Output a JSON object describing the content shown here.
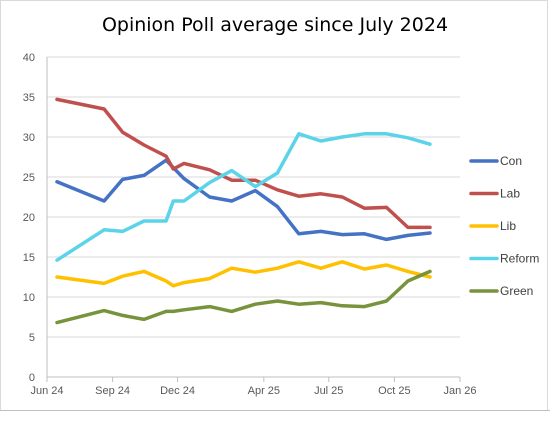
{
  "chart_data": {
    "type": "line",
    "title": "Opinion Poll average since July 2024",
    "xlabel": "",
    "ylabel": "",
    "ylim": [
      0,
      40
    ],
    "yticks": [
      0,
      5,
      10,
      15,
      20,
      25,
      30,
      35,
      40
    ],
    "xlim": [
      "2024-06-01",
      "2026-01-01"
    ],
    "xticks": [
      {
        "date": "2024-06-01",
        "label": "Jun 24"
      },
      {
        "date": "2024-09-01",
        "label": "Sep 24"
      },
      {
        "date": "2024-12-01",
        "label": "Dec 24"
      },
      {
        "date": "2025-04-01",
        "label": "Apr 25"
      },
      {
        "date": "2025-07-01",
        "label": "Jul 25"
      },
      {
        "date": "2025-10-01",
        "label": "Oct 25"
      },
      {
        "date": "2026-01-01",
        "label": "Jan 26"
      }
    ],
    "grid": "horizontal",
    "legend_position": "right",
    "series": [
      {
        "name": "Con",
        "color": "#4472c4",
        "points": [
          [
            "2024-06-15",
            24.4
          ],
          [
            "2024-08-20",
            22.0
          ],
          [
            "2024-09-15",
            24.7
          ],
          [
            "2024-10-15",
            25.2
          ],
          [
            "2024-11-15",
            27.1
          ],
          [
            "2024-12-10",
            24.8
          ],
          [
            "2025-01-15",
            22.5
          ],
          [
            "2025-02-15",
            22.0
          ],
          [
            "2025-03-20",
            23.3
          ],
          [
            "2025-04-20",
            21.3
          ],
          [
            "2025-05-20",
            17.9
          ],
          [
            "2025-06-20",
            18.2
          ],
          [
            "2025-07-20",
            17.8
          ],
          [
            "2025-08-20",
            17.9
          ],
          [
            "2025-09-20",
            17.2
          ],
          [
            "2025-10-20",
            17.7
          ],
          [
            "2025-11-20",
            18.0
          ]
        ]
      },
      {
        "name": "Lab",
        "color": "#c0504d",
        "points": [
          [
            "2024-06-15",
            34.7
          ],
          [
            "2024-08-20",
            33.5
          ],
          [
            "2024-09-15",
            30.6
          ],
          [
            "2024-10-15",
            29.0
          ],
          [
            "2024-11-15",
            27.6
          ],
          [
            "2024-11-25",
            26.0
          ],
          [
            "2024-12-10",
            26.7
          ],
          [
            "2025-01-15",
            25.9
          ],
          [
            "2025-02-15",
            24.6
          ],
          [
            "2025-03-20",
            24.6
          ],
          [
            "2025-04-20",
            23.4
          ],
          [
            "2025-05-20",
            22.6
          ],
          [
            "2025-06-20",
            22.9
          ],
          [
            "2025-07-20",
            22.5
          ],
          [
            "2025-08-20",
            21.1
          ],
          [
            "2025-09-20",
            21.2
          ],
          [
            "2025-10-20",
            18.7
          ],
          [
            "2025-11-20",
            18.7
          ]
        ]
      },
      {
        "name": "Lib",
        "color": "#ffc000",
        "points": [
          [
            "2024-06-15",
            12.5
          ],
          [
            "2024-08-20",
            11.7
          ],
          [
            "2024-09-15",
            12.6
          ],
          [
            "2024-10-15",
            13.2
          ],
          [
            "2024-11-15",
            12.0
          ],
          [
            "2024-11-25",
            11.4
          ],
          [
            "2024-12-10",
            11.8
          ],
          [
            "2025-01-15",
            12.3
          ],
          [
            "2025-02-15",
            13.6
          ],
          [
            "2025-03-20",
            13.1
          ],
          [
            "2025-04-20",
            13.6
          ],
          [
            "2025-05-20",
            14.4
          ],
          [
            "2025-06-20",
            13.6
          ],
          [
            "2025-07-20",
            14.4
          ],
          [
            "2025-08-20",
            13.5
          ],
          [
            "2025-09-20",
            14.0
          ],
          [
            "2025-10-20",
            13.2
          ],
          [
            "2025-11-20",
            12.5
          ]
        ]
      },
      {
        "name": "Reform",
        "color": "#5bd3e8",
        "points": [
          [
            "2024-06-15",
            14.6
          ],
          [
            "2024-08-20",
            18.4
          ],
          [
            "2024-09-15",
            18.2
          ],
          [
            "2024-10-15",
            19.5
          ],
          [
            "2024-11-15",
            19.5
          ],
          [
            "2024-11-25",
            22.0
          ],
          [
            "2024-12-10",
            22.0
          ],
          [
            "2025-01-15",
            24.3
          ],
          [
            "2025-02-15",
            25.8
          ],
          [
            "2025-03-20",
            23.8
          ],
          [
            "2025-04-20",
            25.5
          ],
          [
            "2025-05-20",
            30.4
          ],
          [
            "2025-06-20",
            29.5
          ],
          [
            "2025-07-20",
            30.0
          ],
          [
            "2025-08-20",
            30.4
          ],
          [
            "2025-09-20",
            30.4
          ],
          [
            "2025-10-20",
            29.9
          ],
          [
            "2025-11-20",
            29.1
          ]
        ]
      },
      {
        "name": "Green",
        "color": "#77933c",
        "points": [
          [
            "2024-06-15",
            6.8
          ],
          [
            "2024-08-20",
            8.3
          ],
          [
            "2024-09-15",
            7.7
          ],
          [
            "2024-10-15",
            7.2
          ],
          [
            "2024-11-15",
            8.2
          ],
          [
            "2024-11-25",
            8.2
          ],
          [
            "2024-12-10",
            8.4
          ],
          [
            "2025-01-15",
            8.8
          ],
          [
            "2025-02-15",
            8.2
          ],
          [
            "2025-03-20",
            9.1
          ],
          [
            "2025-04-20",
            9.5
          ],
          [
            "2025-05-20",
            9.1
          ],
          [
            "2025-06-20",
            9.3
          ],
          [
            "2025-07-20",
            8.9
          ],
          [
            "2025-08-20",
            8.8
          ],
          [
            "2025-09-20",
            9.5
          ],
          [
            "2025-10-20",
            12.0
          ],
          [
            "2025-11-20",
            13.2
          ]
        ]
      }
    ]
  }
}
